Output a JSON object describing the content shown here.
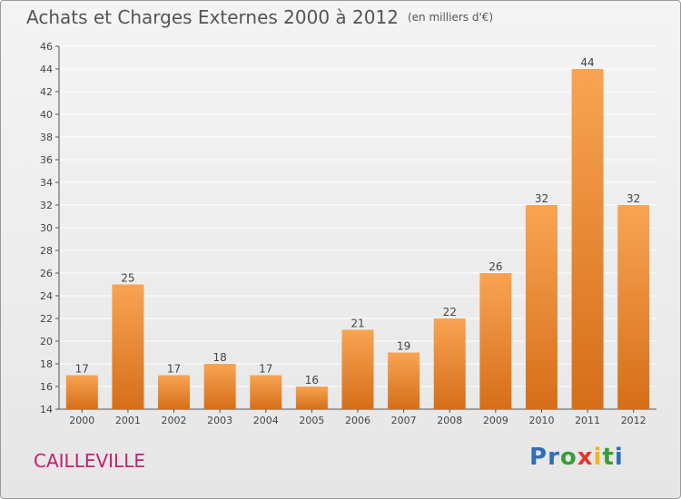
{
  "header": {
    "title": "Achats et Charges Externes 2000 à 2012",
    "subtitle": "(en milliers d'€)"
  },
  "footer": {
    "town": "CAILLEVILLE",
    "logo": {
      "letters": [
        {
          "ch": "P",
          "color": "#2f6fb8"
        },
        {
          "ch": "r",
          "color": "#2f6fb8"
        },
        {
          "ch": "o",
          "color": "#3a9d3a"
        },
        {
          "ch": "x",
          "color": "#e7372a"
        },
        {
          "ch": "i",
          "color": "#f2b619"
        },
        {
          "ch": "t",
          "color": "#3a9d3a"
        },
        {
          "ch": "i",
          "color": "#2f6fb8"
        }
      ]
    }
  },
  "colors": {
    "bar_light": "#f8a453",
    "bar_dark": "#d66e19",
    "axis": "#555555",
    "grid": "#ffffff"
  },
  "chart_data": {
    "type": "bar",
    "title": "Achats et Charges Externes 2000 à 2012",
    "subtitle": "(en milliers d'€)",
    "categories": [
      "2000",
      "2001",
      "2002",
      "2003",
      "2004",
      "2005",
      "2006",
      "2007",
      "2008",
      "2009",
      "2010",
      "2011",
      "2012"
    ],
    "values": [
      17,
      25,
      17,
      18,
      17,
      16,
      21,
      19,
      22,
      26,
      32,
      44,
      32
    ],
    "ylim": [
      14,
      46
    ],
    "yticks": [
      14,
      16,
      18,
      20,
      22,
      24,
      26,
      28,
      30,
      32,
      34,
      36,
      38,
      40,
      42,
      44,
      46
    ],
    "grid": true,
    "data_labels": true
  }
}
